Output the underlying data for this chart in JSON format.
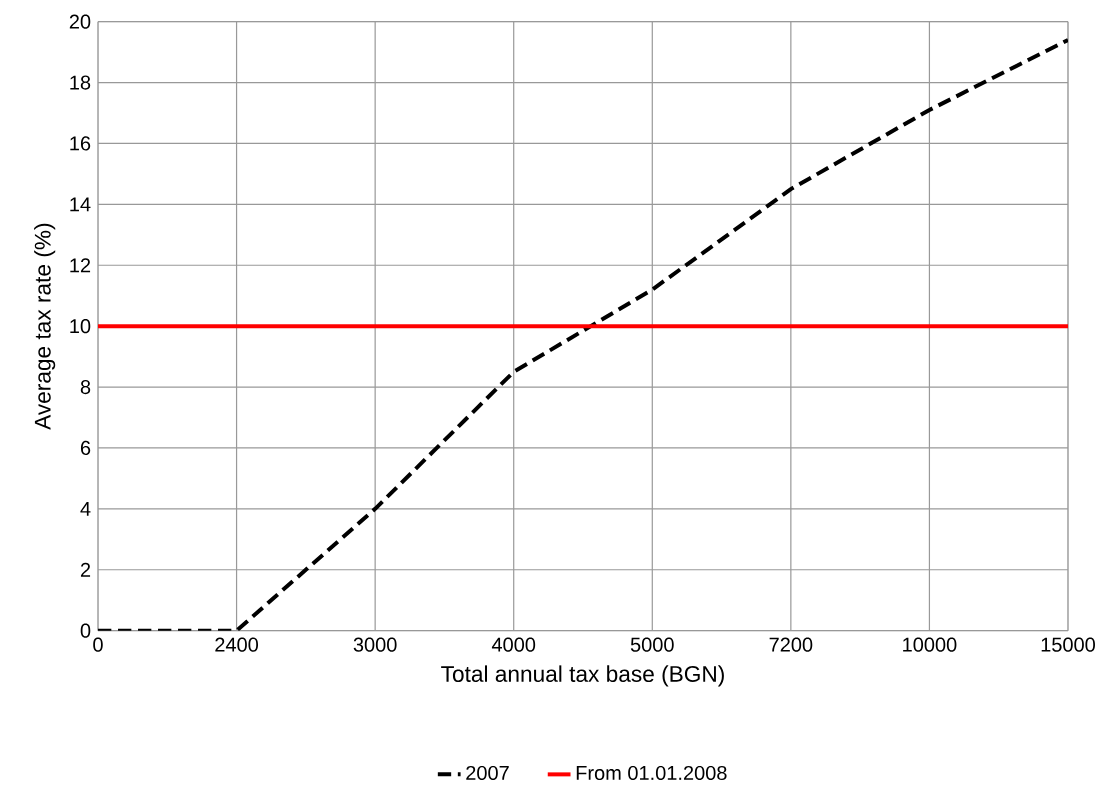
{
  "chart_data": {
    "type": "line",
    "xlabel": "Total annual tax base (BGN)",
    "ylabel": "Average tax rate (%)",
    "categories": [
      "0",
      "2400",
      "3000",
      "4000",
      "5000",
      "7200",
      "10000",
      "15000"
    ],
    "series": [
      {
        "name": "2007",
        "color": "#000000",
        "line_style": "dashed",
        "values": [
          0,
          0,
          4,
          8.5,
          11.2,
          14.5,
          17.1,
          19.4
        ]
      },
      {
        "name": "From 01.01.2008",
        "color": "#ff0000",
        "line_style": "solid",
        "values": [
          10,
          10,
          10,
          10,
          10,
          10,
          10,
          10
        ]
      }
    ],
    "ylim": [
      0,
      20
    ],
    "yticks": [
      0,
      2,
      4,
      6,
      8,
      10,
      12,
      14,
      16,
      18,
      20
    ],
    "grid": true,
    "legend": "bottom"
  }
}
